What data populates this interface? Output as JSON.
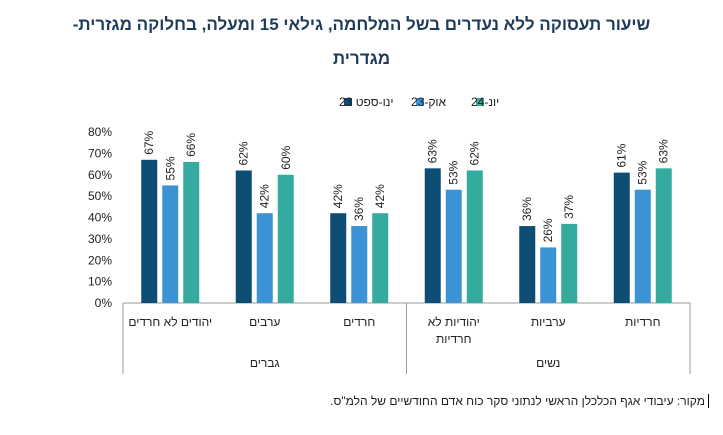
{
  "title": {
    "line1": "שיעור תעסוקה ללא נעדרים בשל המלחמה, גילאי 15 ומעלה, בחלוקה מגזרית-",
    "line2": "מגדרית"
  },
  "source": "מקור: עיבודי אגף הכלכלן הראשי לנתוני סקר כוח אדם החודשיים של הלמ\"ס.",
  "chart_data": {
    "type": "bar",
    "categories": [
      "יהודים לא חרדים",
      "ערבים",
      "חרדים",
      "יהודיות לא חרדיות",
      "ערביות",
      "חרדיות"
    ],
    "groups": [
      {
        "label": "גברים",
        "categories": [
          "יהודים לא חרדים",
          "ערבים",
          "חרדים"
        ]
      },
      {
        "label": "נשים",
        "categories": [
          "יהודיות לא חרדיות",
          "ערביות",
          "חרדיות"
        ]
      }
    ],
    "series": [
      {
        "name": "ינו-ספט 23",
        "color": "#0e4d74",
        "values": [
          67,
          62,
          42,
          63,
          36,
          61
        ],
        "labels": [
          "67%",
          "62%",
          "42%",
          "63%",
          "36%",
          "61%"
        ]
      },
      {
        "name": "אוק-23",
        "color": "#3b93d6",
        "values": [
          55,
          42,
          36,
          53,
          26,
          53
        ],
        "labels": [
          "55%",
          "42%",
          "36%",
          "53%",
          "26%",
          "53%"
        ]
      },
      {
        "name": "יונ-24",
        "color": "#35aba0",
        "values": [
          66,
          60,
          42,
          62,
          37,
          63
        ],
        "labels": [
          "66%",
          "60%",
          "42%",
          "62%",
          "37%",
          "63%"
        ]
      }
    ],
    "yticks": [
      "80%",
      "70%",
      "60%",
      "50%",
      "40%",
      "30%",
      "20%",
      "10%",
      "0%"
    ],
    "ylim": [
      0,
      80
    ],
    "legend": "top"
  }
}
